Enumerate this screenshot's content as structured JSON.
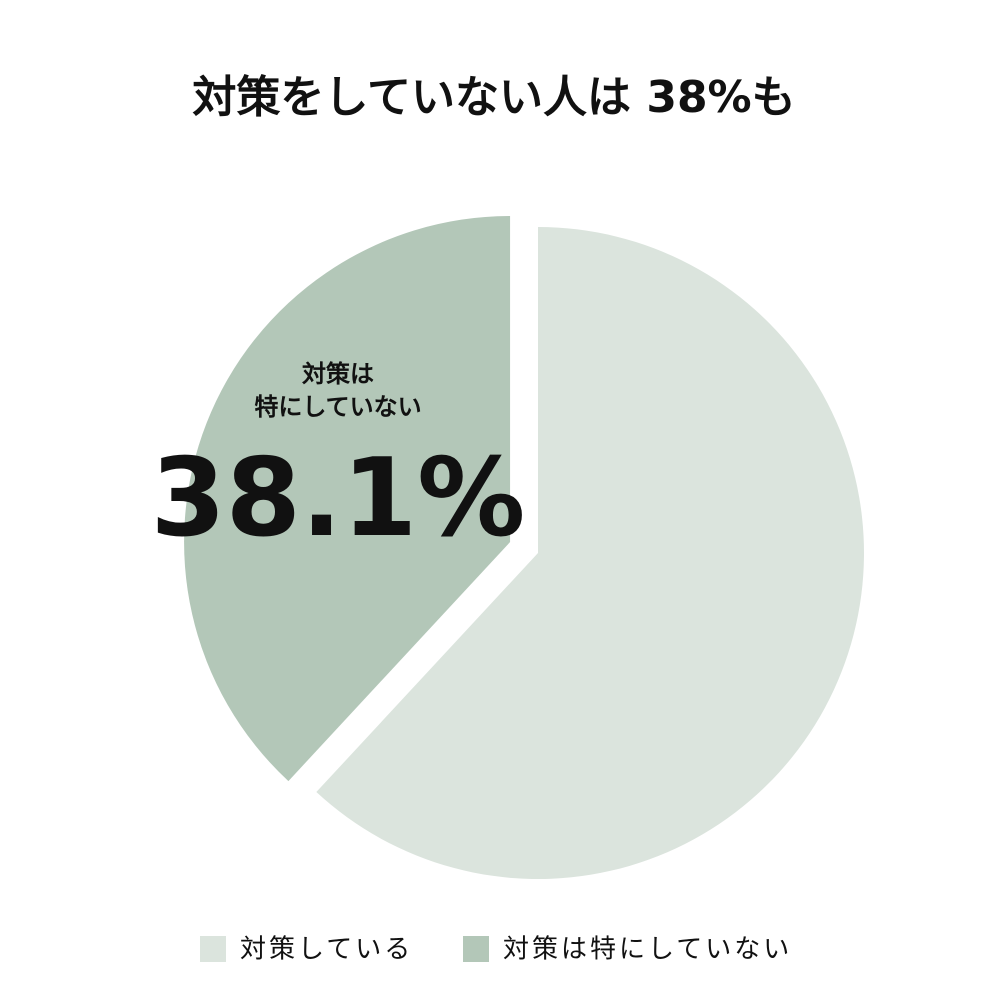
{
  "chart_data": {
    "type": "pie",
    "title": "対策をしていない人は 38%も",
    "categories": [
      "対策している",
      "対策は特にしていない"
    ],
    "values": [
      61.9,
      38.1
    ],
    "value_labels": [
      null,
      "38.1%"
    ],
    "colors": [
      "#dbe4dd",
      "#b3c7b8"
    ],
    "annotations": [
      "対策は",
      "特にしていない"
    ],
    "legend": "bottom"
  }
}
